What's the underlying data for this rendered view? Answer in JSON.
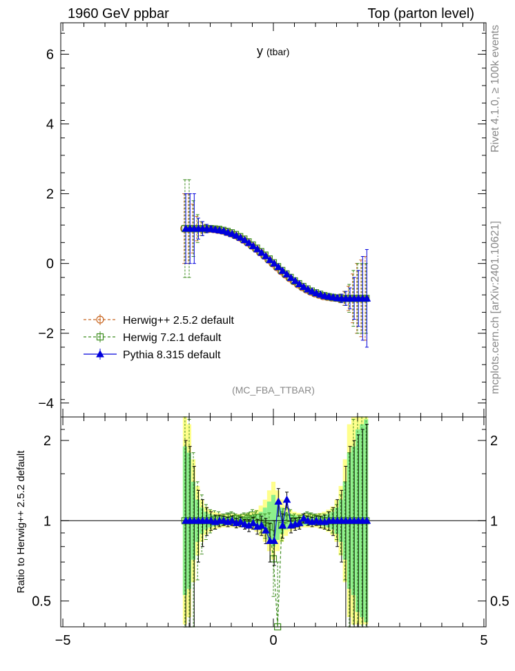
{
  "header": {
    "left": "1960 GeV ppbar",
    "right": "Top (parton level)"
  },
  "side": {
    "top": "Rivet 4.1.0, ≥ 100k events",
    "bottom": "mcplots.cern.ch [arXiv:2401.10621]"
  },
  "analysis_tag": "(MC_FBA_TTBAR)",
  "colors": {
    "herwigpp": "#c8641e",
    "herwig7": "#3c8c1e",
    "pythia": "#0000dc",
    "band_green": "#8cf08c",
    "band_yellow": "#ffff8c"
  },
  "chart_data": [
    {
      "type": "line",
      "title": "y",
      "title_suffix": "(tbar)",
      "xlabel": "",
      "ylabel": "",
      "xlim": [
        -5.05,
        5.05
      ],
      "ylim": [
        -4.4,
        6.9
      ],
      "x_ticks": [
        -5,
        0,
        5
      ],
      "x_tick_labels": [
        "−5",
        "0",
        "5"
      ],
      "y_ticks": [
        -4,
        -2,
        0,
        2,
        4,
        6
      ],
      "y_tick_labels": [
        "−4",
        "−2",
        "0",
        "2",
        "4",
        "6"
      ],
      "legend_position": "bottom-left",
      "x": [
        -2.1,
        -2.0,
        -1.9,
        -1.8,
        -1.7,
        -1.6,
        -1.5,
        -1.4,
        -1.3,
        -1.2,
        -1.1,
        -1.0,
        -0.9,
        -0.8,
        -0.7,
        -0.6,
        -0.5,
        -0.4,
        -0.3,
        -0.2,
        -0.1,
        0.0,
        0.1,
        0.2,
        0.3,
        0.4,
        0.5,
        0.6,
        0.7,
        0.8,
        0.9,
        1.0,
        1.1,
        1.2,
        1.3,
        1.4,
        1.5,
        1.6,
        1.7,
        1.8,
        1.9,
        2.0,
        2.1,
        2.2
      ],
      "series": [
        {
          "name": "Herwig++ 2.5.2 default",
          "marker": "circle",
          "style": "dashed",
          "values": [
            1.0,
            1.0,
            1.0,
            1.0,
            1.0,
            1.0,
            0.99,
            0.98,
            0.96,
            0.94,
            0.9,
            0.86,
            0.81,
            0.75,
            0.68,
            0.6,
            0.51,
            0.42,
            0.32,
            0.22,
            0.11,
            0.0,
            -0.11,
            -0.22,
            -0.32,
            -0.42,
            -0.51,
            -0.6,
            -0.68,
            -0.75,
            -0.81,
            -0.86,
            -0.9,
            -0.94,
            -0.96,
            -0.98,
            -0.99,
            -1.0,
            -1.0,
            -1.0,
            -1.0,
            -1.0,
            -1.0,
            -1.0
          ],
          "errors": [
            1.0,
            1.0,
            0.7,
            0.35,
            0.2,
            0.12,
            0.08,
            0.06,
            0.05,
            0.04,
            0.03,
            0.03,
            0.03,
            0.03,
            0.03,
            0.03,
            0.03,
            0.03,
            0.03,
            0.03,
            0.03,
            0.03,
            0.03,
            0.03,
            0.03,
            0.03,
            0.03,
            0.03,
            0.03,
            0.03,
            0.03,
            0.03,
            0.03,
            0.04,
            0.05,
            0.06,
            0.08,
            0.12,
            0.2,
            0.35,
            0.7,
            1.0,
            1.1,
            1.2
          ]
        },
        {
          "name": "Herwig 7.2.1 default",
          "marker": "square",
          "style": "dashed",
          "values": [
            1.0,
            1.0,
            1.0,
            1.0,
            1.0,
            1.0,
            1.0,
            0.99,
            0.98,
            0.95,
            0.92,
            0.88,
            0.83,
            0.77,
            0.7,
            0.62,
            0.53,
            0.44,
            0.34,
            0.24,
            0.13,
            0.02,
            -0.09,
            -0.2,
            -0.3,
            -0.4,
            -0.5,
            -0.58,
            -0.66,
            -0.73,
            -0.79,
            -0.84,
            -0.88,
            -0.92,
            -0.95,
            -0.97,
            -0.99,
            -1.0,
            -1.0,
            -1.0,
            -1.0,
            -1.0,
            -1.0,
            -1.0
          ],
          "errors": [
            1.4,
            1.4,
            0.8,
            0.4,
            0.2,
            0.12,
            0.08,
            0.06,
            0.05,
            0.04,
            0.03,
            0.03,
            0.03,
            0.03,
            0.03,
            0.03,
            0.03,
            0.03,
            0.03,
            0.03,
            0.03,
            0.03,
            0.03,
            0.03,
            0.03,
            0.03,
            0.03,
            0.03,
            0.03,
            0.03,
            0.03,
            0.03,
            0.03,
            0.04,
            0.05,
            0.06,
            0.08,
            0.12,
            0.2,
            0.4,
            0.8,
            1.0,
            1.0,
            1.0
          ]
        },
        {
          "name": "Pythia 8.315 default",
          "marker": "triangle",
          "style": "solid",
          "values": [
            1.0,
            1.0,
            1.0,
            1.0,
            1.0,
            1.0,
            0.99,
            0.97,
            0.95,
            0.93,
            0.89,
            0.85,
            0.8,
            0.74,
            0.67,
            0.59,
            0.5,
            0.41,
            0.31,
            0.21,
            0.1,
            0.0,
            -0.1,
            -0.21,
            -0.31,
            -0.41,
            -0.5,
            -0.59,
            -0.67,
            -0.74,
            -0.8,
            -0.85,
            -0.89,
            -0.93,
            -0.95,
            -0.97,
            -0.99,
            -1.0,
            -1.0,
            -1.0,
            -1.0,
            -1.0,
            -1.0,
            -1.0
          ],
          "errors": [
            1.0,
            1.0,
            1.0,
            0.3,
            0.2,
            0.12,
            0.08,
            0.06,
            0.05,
            0.04,
            0.03,
            0.03,
            0.03,
            0.03,
            0.03,
            0.03,
            0.03,
            0.03,
            0.03,
            0.03,
            0.03,
            0.03,
            0.03,
            0.03,
            0.03,
            0.03,
            0.03,
            0.03,
            0.03,
            0.03,
            0.03,
            0.03,
            0.03,
            0.04,
            0.05,
            0.06,
            0.08,
            0.12,
            0.2,
            0.3,
            0.6,
            0.8,
            1.2,
            1.4
          ]
        }
      ]
    },
    {
      "type": "line",
      "title": "",
      "xlabel": "",
      "ylabel": "Ratio to Herwig++ 2.5.2 default",
      "xlim": [
        -5.05,
        5.05
      ],
      "ylim": [
        0.4,
        2.45
      ],
      "scale": "log",
      "x_ticks": [
        -5,
        0,
        5
      ],
      "x_tick_labels": [
        "−5",
        "0",
        "5"
      ],
      "y_ticks": [
        0.5,
        1,
        2
      ],
      "y_tick_labels": [
        "0.5",
        "1",
        "2"
      ],
      "reference_line": 1.0,
      "x": [
        -2.1,
        -2.0,
        -1.9,
        -1.8,
        -1.7,
        -1.6,
        -1.5,
        -1.4,
        -1.3,
        -1.2,
        -1.1,
        -1.0,
        -0.9,
        -0.8,
        -0.7,
        -0.6,
        -0.5,
        -0.4,
        -0.3,
        -0.2,
        -0.1,
        0.0,
        0.1,
        0.2,
        0.3,
        0.4,
        0.5,
        0.6,
        0.7,
        0.8,
        0.9,
        1.0,
        1.1,
        1.2,
        1.3,
        1.4,
        1.5,
        1.6,
        1.7,
        1.8,
        1.9,
        2.0,
        2.1,
        2.2
      ],
      "band_inner": [
        1.9,
        1.8,
        1.4,
        1.2,
        1.12,
        1.08,
        1.06,
        1.05,
        1.04,
        1.04,
        1.04,
        1.04,
        1.04,
        1.04,
        1.04,
        1.04,
        1.05,
        1.06,
        1.08,
        1.12,
        1.18,
        1.25,
        1.18,
        1.12,
        1.08,
        1.06,
        1.05,
        1.04,
        1.04,
        1.04,
        1.04,
        1.04,
        1.04,
        1.05,
        1.06,
        1.08,
        1.12,
        1.2,
        1.4,
        1.8,
        1.9,
        2.2,
        2.3,
        2.4
      ],
      "band_outer": [
        2.45,
        2.3,
        1.7,
        1.35,
        1.2,
        1.13,
        1.1,
        1.08,
        1.07,
        1.06,
        1.06,
        1.06,
        1.06,
        1.06,
        1.06,
        1.07,
        1.08,
        1.1,
        1.14,
        1.2,
        1.3,
        1.4,
        1.3,
        1.2,
        1.14,
        1.1,
        1.08,
        1.07,
        1.06,
        1.06,
        1.06,
        1.06,
        1.07,
        1.08,
        1.1,
        1.13,
        1.2,
        1.35,
        1.7,
        2.3,
        2.45,
        2.45,
        2.45,
        2.45
      ],
      "series": [
        {
          "name": "Herwig 7.2.1 default",
          "marker": "square",
          "style": "dashed",
          "values": [
            1.0,
            1.0,
            1.0,
            1.0,
            1.0,
            1.0,
            1.0,
            1.01,
            1.02,
            1.01,
            1.03,
            1.04,
            1.02,
            1.01,
            1.03,
            1.02,
            1.05,
            1.03,
            0.98,
            0.96,
            0.95,
            0.72,
            0.4,
            0.96,
            1.08,
            1.02,
            1.0,
            1.0,
            1.02,
            1.04,
            1.03,
            1.02,
            1.01,
            1.0,
            1.0,
            1.0,
            1.0,
            1.0,
            1.0,
            1.0,
            1.0,
            1.0,
            1.0,
            1.0
          ],
          "errors": [
            1.5,
            1.4,
            0.8,
            0.4,
            0.25,
            0.15,
            0.1,
            0.08,
            0.06,
            0.05,
            0.04,
            0.04,
            0.04,
            0.04,
            0.04,
            0.05,
            0.05,
            0.06,
            0.08,
            0.1,
            0.12,
            0.2,
            0.3,
            0.12,
            0.1,
            0.08,
            0.06,
            0.05,
            0.04,
            0.04,
            0.04,
            0.04,
            0.05,
            0.06,
            0.08,
            0.1,
            0.15,
            0.25,
            0.4,
            0.8,
            1.4,
            1.5,
            1.6,
            1.6
          ]
        },
        {
          "name": "Pythia 8.315 default",
          "marker": "triangle",
          "style": "solid",
          "values": [
            1.0,
            1.0,
            1.0,
            1.0,
            1.0,
            1.0,
            1.0,
            0.99,
            1.0,
            1.0,
            0.99,
            1.0,
            0.98,
            0.99,
            0.97,
            0.96,
            0.98,
            0.95,
            0.96,
            0.92,
            0.84,
            0.84,
            1.18,
            0.96,
            1.2,
            0.96,
            0.97,
            0.98,
            1.02,
            1.0,
            0.99,
            1.0,
            0.99,
            0.99,
            1.0,
            1.0,
            1.0,
            1.0,
            1.0,
            1.0,
            1.0,
            1.0,
            1.0,
            1.0
          ],
          "errors": [
            1.0,
            0.9,
            0.6,
            0.3,
            0.2,
            0.12,
            0.08,
            0.06,
            0.05,
            0.04,
            0.04,
            0.04,
            0.04,
            0.04,
            0.04,
            0.05,
            0.05,
            0.06,
            0.08,
            0.1,
            0.14,
            0.16,
            0.14,
            0.1,
            0.08,
            0.06,
            0.05,
            0.05,
            0.04,
            0.04,
            0.04,
            0.04,
            0.05,
            0.06,
            0.08,
            0.12,
            0.2,
            0.3,
            0.6,
            0.9,
            1.0,
            1.1,
            1.2,
            1.3
          ]
        }
      ]
    }
  ]
}
